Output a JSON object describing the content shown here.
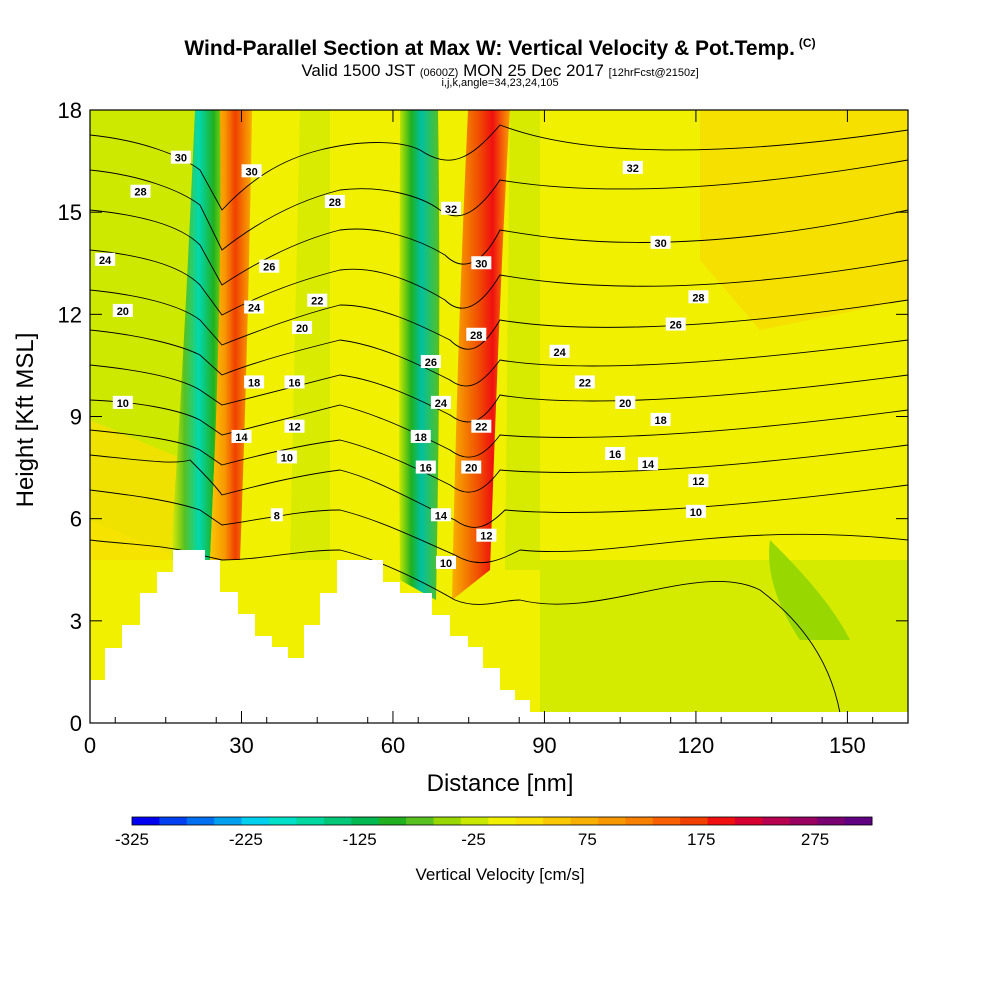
{
  "title": "Wind-Parallel Section at Max W: Vertical Velocity & Pot.Temp.",
  "title_mark": "(C)",
  "subtitle_main": "Valid 1500 JST",
  "subtitle_utc": "(0600Z)",
  "subtitle_date": "MON 25 Dec 2017",
  "subtitle_fcst": "[12hrFcst@2150z]",
  "grid_info": "i,j,k,angle=34,23,24,105",
  "chart_data": {
    "type": "heatmap",
    "xlabel": "Distance [nm]",
    "ylabel": "Height [Kft MSL]",
    "xlim": [
      0,
      162
    ],
    "ylim": [
      0,
      18
    ],
    "x_ticks": [
      0,
      30,
      60,
      90,
      120,
      150
    ],
    "y_ticks": [
      0,
      3,
      6,
      9,
      12,
      15,
      18
    ],
    "colorbar": {
      "label": "Vertical Velocity [cm/s]",
      "tick_labels": [
        "-325",
        "-225",
        "-125",
        "-25",
        "75",
        "175",
        "275"
      ],
      "tick_values": [
        -325,
        -225,
        -125,
        -25,
        75,
        175,
        275
      ],
      "range": [
        -325,
        325
      ],
      "colors": [
        "#0000f0",
        "#0040f0",
        "#0070f0",
        "#00a0f0",
        "#00d0f0",
        "#00e0c8",
        "#00d8a0",
        "#00c878",
        "#00b850",
        "#20b020",
        "#58c020",
        "#98d800",
        "#c8e800",
        "#f0f000",
        "#f8e000",
        "#f8c800",
        "#f8b000",
        "#f89800",
        "#f88000",
        "#f86000",
        "#f04000",
        "#f01010",
        "#d80030",
        "#b80050",
        "#980060",
        "#780070",
        "#600080"
      ]
    },
    "theta_labels": [
      {
        "label": "30",
        "x": 18,
        "y": 16.6
      },
      {
        "label": "28",
        "x": 10,
        "y": 15.6
      },
      {
        "label": "24",
        "x": 3,
        "y": 13.6
      },
      {
        "label": "20",
        "x": 6.5,
        "y": 12.1
      },
      {
        "label": "10",
        "x": 6.5,
        "y": 9.4
      },
      {
        "label": "30",
        "x": 32,
        "y": 16.2
      },
      {
        "label": "26",
        "x": 35.5,
        "y": 13.4
      },
      {
        "label": "24",
        "x": 32.5,
        "y": 12.2
      },
      {
        "label": "22",
        "x": 45,
        "y": 12.4
      },
      {
        "label": "20",
        "x": 42,
        "y": 11.6
      },
      {
        "label": "18",
        "x": 32.5,
        "y": 10.0
      },
      {
        "label": "16",
        "x": 40.5,
        "y": 10.0
      },
      {
        "label": "14",
        "x": 30,
        "y": 8.4
      },
      {
        "label": "12",
        "x": 40.5,
        "y": 8.7
      },
      {
        "label": "10",
        "x": 39,
        "y": 7.8
      },
      {
        "label": "8",
        "x": 37,
        "y": 6.1
      },
      {
        "label": "28",
        "x": 48.5,
        "y": 15.3
      },
      {
        "label": "32",
        "x": 71.5,
        "y": 15.1
      },
      {
        "label": "30",
        "x": 77.5,
        "y": 13.5
      },
      {
        "label": "28",
        "x": 76.5,
        "y": 11.4
      },
      {
        "label": "26",
        "x": 67.5,
        "y": 10.6
      },
      {
        "label": "24",
        "x": 69.5,
        "y": 9.4
      },
      {
        "label": "22",
        "x": 77.5,
        "y": 8.7
      },
      {
        "label": "18",
        "x": 65.5,
        "y": 8.4
      },
      {
        "label": "16",
        "x": 66.5,
        "y": 7.5
      },
      {
        "label": "20",
        "x": 75.5,
        "y": 7.5
      },
      {
        "label": "14",
        "x": 69.5,
        "y": 6.1
      },
      {
        "label": "12",
        "x": 78.5,
        "y": 5.5
      },
      {
        "label": "10",
        "x": 70.5,
        "y": 4.7
      },
      {
        "label": "24",
        "x": 93,
        "y": 10.9
      },
      {
        "label": "22",
        "x": 98,
        "y": 10.0
      },
      {
        "label": "20",
        "x": 106,
        "y": 9.4
      },
      {
        "label": "18",
        "x": 113,
        "y": 8.9
      },
      {
        "label": "16",
        "x": 104,
        "y": 7.9
      },
      {
        "label": "14",
        "x": 110.5,
        "y": 7.6
      },
      {
        "label": "12",
        "x": 120.5,
        "y": 7.1
      },
      {
        "label": "10",
        "x": 120,
        "y": 6.2
      },
      {
        "label": "32",
        "x": 107.5,
        "y": 16.3
      },
      {
        "label": "30",
        "x": 113,
        "y": 14.1
      },
      {
        "label": "28",
        "x": 120.5,
        "y": 12.5
      },
      {
        "label": "26",
        "x": 116,
        "y": 11.7
      }
    ]
  }
}
